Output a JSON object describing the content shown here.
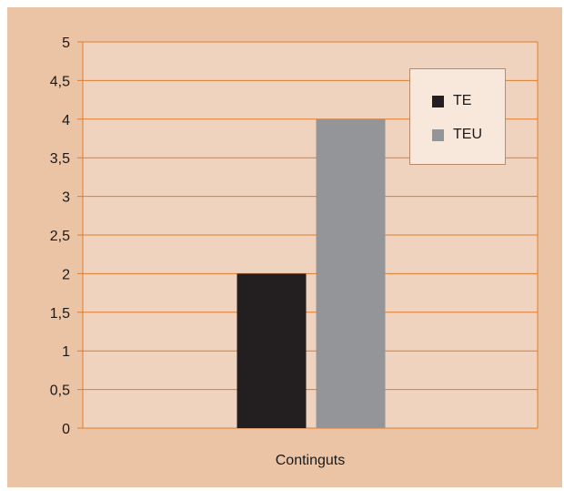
{
  "chart_data": {
    "type": "bar",
    "categories": [
      "Continguts"
    ],
    "series": [
      {
        "name": "TE",
        "values": [
          2
        ],
        "color": "#231f20"
      },
      {
        "name": "TEU",
        "values": [
          4
        ],
        "color": "#939598"
      }
    ],
    "ylim": [
      0,
      5
    ],
    "yticks": [
      "0",
      "0,5",
      "1",
      "1,5",
      "2",
      "2,5",
      "3",
      "3,5",
      "4",
      "4,5",
      "5"
    ],
    "grid": true,
    "legend_position": "top-right",
    "colors": {
      "background": "#ebc4a6",
      "plot_area": "#f0d3be",
      "gridline": "#e07c2c",
      "legend_bg": "#f7e8db"
    }
  }
}
